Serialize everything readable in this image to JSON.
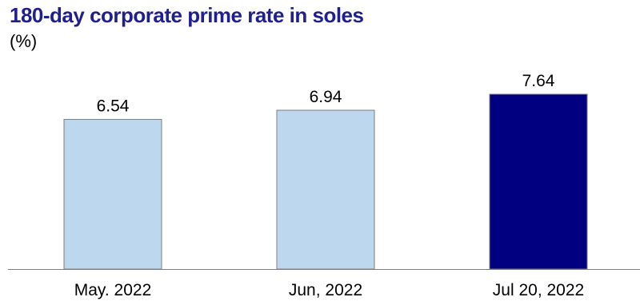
{
  "chart_data": {
    "type": "bar",
    "title": "180-day corporate prime rate in soles",
    "subtitle": "(%)",
    "categories": [
      "May. 2022",
      "Jun, 2022",
      "Jul 20, 2022"
    ],
    "values": [
      6.54,
      6.94,
      7.64
    ],
    "data_labels": [
      "6.54",
      "6.94",
      "7.64"
    ],
    "ylim": [
      0,
      7.64
    ],
    "xlabel": "",
    "ylabel": "",
    "grid": false,
    "legend": "none",
    "colors": {
      "title": "#1F1F8F",
      "bar_default": "#BDD7EE",
      "bar_highlight": "#000080",
      "bar_stroke": "#7F7F7F",
      "axis": "#808080"
    },
    "highlight_index": 2
  }
}
